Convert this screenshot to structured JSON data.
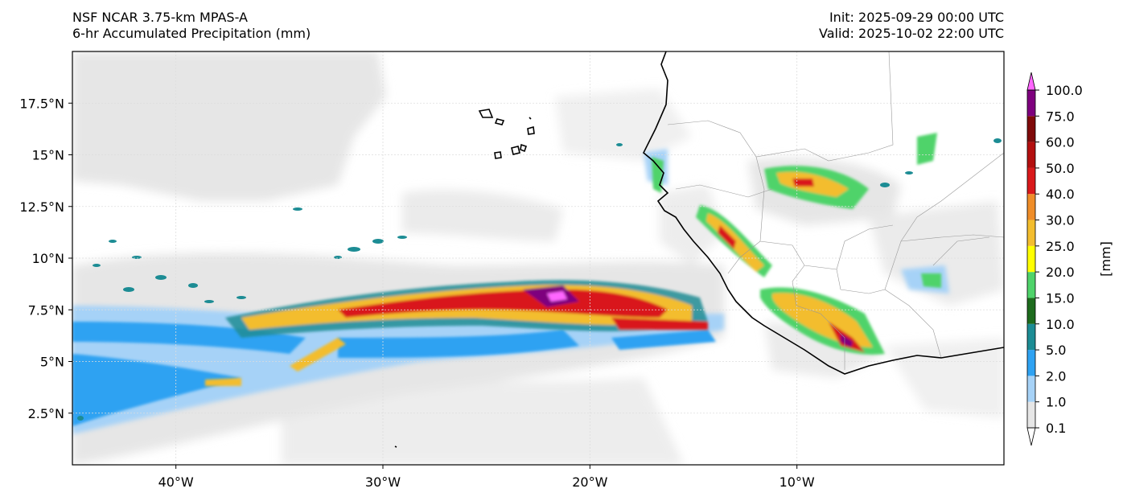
{
  "header": {
    "model": "NSF NCAR 3.75-km MPAS-A",
    "field": "6-hr Accumulated Precipitation (mm)",
    "init": "Init: 2025-09-29 00:00 UTC",
    "valid": "Valid: 2025-10-02 22:00 UTC"
  },
  "map": {
    "lon_range": [
      -45,
      0
    ],
    "lat_range": [
      0,
      20
    ],
    "lat_ticks": [
      {
        "value": 2.5,
        "label": "2.5°N"
      },
      {
        "value": 5,
        "label": "5°N"
      },
      {
        "value": 7.5,
        "label": "7.5°N"
      },
      {
        "value": 10,
        "label": "10°N"
      },
      {
        "value": 12.5,
        "label": "12.5°N"
      },
      {
        "value": 15,
        "label": "15°N"
      },
      {
        "value": 17.5,
        "label": "17.5°N"
      }
    ],
    "lon_ticks": [
      {
        "value": -40,
        "label": "40°W"
      },
      {
        "value": -30,
        "label": "30°W"
      },
      {
        "value": -20,
        "label": "20°W"
      },
      {
        "value": -10,
        "label": "10°W"
      }
    ],
    "grid": true
  },
  "colorbar": {
    "unit_label": "[mm]",
    "levels": [
      "0.1",
      "1.0",
      "2.0",
      "5.0",
      "10.0",
      "15.0",
      "20.0",
      "25.0",
      "30.0",
      "40.0",
      "50.0",
      "60.0",
      "75.0",
      "100.0"
    ],
    "colors": [
      "#e6e6e6",
      "#a6d2f7",
      "#2ea2f2",
      "#1c8c94",
      "#1d6b1d",
      "#4fd36a",
      "#ffff00",
      "#f3bd2e",
      "#ef8d29",
      "#d9191b",
      "#b30f0f",
      "#7f0a0a",
      "#7e007e"
    ],
    "under_color": "#ffffff",
    "over_color": "#ff66ff"
  }
}
